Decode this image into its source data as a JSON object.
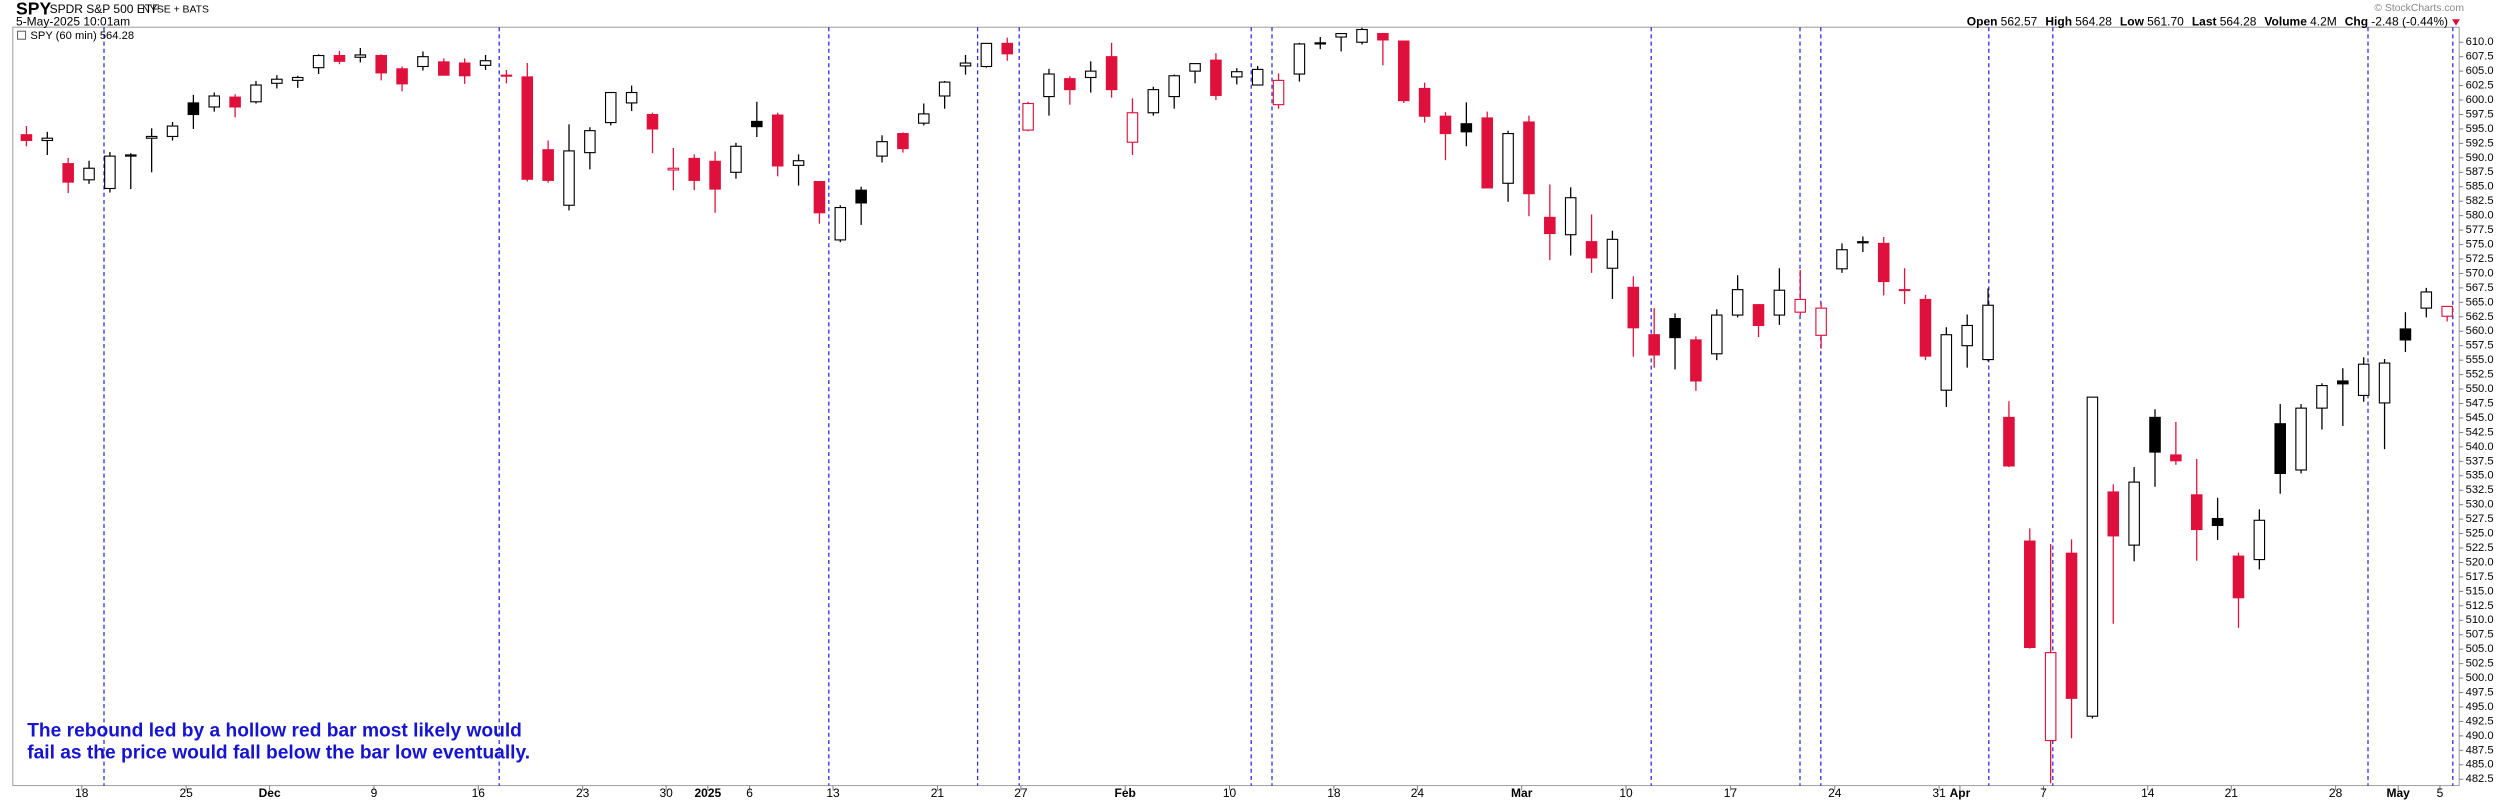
{
  "header": {
    "ticker": "SPY",
    "name": "SPDR S&P 500 ETF",
    "exchange": "NYSE + BATS",
    "date": "5-May-2025 10:01am",
    "legend": "SPY (60 min) 564.28",
    "watermark": "© StockCharts.com",
    "stats": [
      {
        "label": "Open",
        "value": "562.57"
      },
      {
        "label": "High",
        "value": "564.28"
      },
      {
        "label": "Low",
        "value": "561.70"
      },
      {
        "label": "Last",
        "value": "564.28"
      },
      {
        "label": "Volume",
        "value": "4.2M"
      },
      {
        "label": "Chg",
        "value": "-2.48 (-0.44%)"
      }
    ]
  },
  "chart_data": {
    "type": "candlestick",
    "annotation": [
      "The rebound led by a hollow red bar most likely would",
      "fail as the price would fall below the bar low eventually."
    ],
    "up_color": "#000000",
    "down_color": "#e0103c",
    "categories": [
      null,
      null,
      null,
      "18",
      null,
      null,
      null,
      null,
      "25",
      null,
      null,
      null,
      "Dec",
      null,
      null,
      null,
      null,
      "9",
      null,
      null,
      null,
      null,
      "16",
      null,
      null,
      null,
      null,
      "23",
      null,
      null,
      null,
      "30",
      null,
      "2025",
      null,
      "6",
      null,
      null,
      null,
      "13",
      null,
      null,
      null,
      null,
      "21",
      null,
      null,
      null,
      "27",
      null,
      null,
      null,
      null,
      "Feb",
      null,
      null,
      null,
      null,
      "10",
      null,
      null,
      null,
      null,
      "18",
      null,
      null,
      null,
      "24",
      null,
      null,
      null,
      null,
      "Mar",
      null,
      null,
      null,
      null,
      "10",
      null,
      null,
      null,
      null,
      "17",
      null,
      null,
      null,
      null,
      "24",
      null,
      null,
      null,
      null,
      "31",
      "Apr",
      null,
      null,
      null,
      "7",
      null,
      null,
      null,
      null,
      "14",
      null,
      null,
      null,
      "21",
      null,
      null,
      null,
      null,
      "28",
      null,
      null,
      "May",
      null,
      "5"
    ],
    "open": [
      594.0,
      593.0,
      589.0,
      586.2,
      584.7,
      590.3,
      593.4,
      593.7,
      599.5,
      598.8,
      600.5,
      599.7,
      602.9,
      603.4,
      605.6,
      607.7,
      607.4,
      607.7,
      605.4,
      605.8,
      606.6,
      606.4,
      606.0,
      604.2,
      604.0,
      591.4,
      581.8,
      590.9,
      596.1,
      599.5,
      597.5,
      587.9,
      589.9,
      589.4,
      587.5,
      596.3,
      597.4,
      588.7,
      585.9,
      575.8,
      584.4,
      590.3,
      594.2,
      596.0,
      600.7,
      605.9,
      605.8,
      609.8,
      594.8,
      600.6,
      603.7,
      603.9,
      607.5,
      592.7,
      597.8,
      600.6,
      605.0,
      606.9,
      604.0,
      602.6,
      599.2,
      604.5,
      609.9,
      610.9,
      610.0,
      611.5,
      610.2,
      602.0,
      597.2,
      595.9,
      596.9,
      585.6,
      596.2,
      579.7,
      576.7,
      575.5,
      570.9,
      567.6,
      559.4,
      562.2,
      558.5,
      556.1,
      562.8,
      564.6,
      562.8,
      563.3,
      559.3,
      570.8,
      575.3,
      575.2,
      567.2,
      565.5,
      549.8,
      557.5,
      555.1,
      545.1,
      523.7,
      489.2,
      521.6,
      493.4,
      532.2,
      523.0,
      545.1,
      538.6,
      531.7,
      527.6,
      521.1,
      520.5,
      544.0,
      536.0,
      546.7,
      551.4,
      548.9,
      547.6,
      560.4,
      564.0,
      562.6
    ],
    "high": [
      595.5,
      594.5,
      590.0,
      589.5,
      591.0,
      590.8,
      595.1,
      596.2,
      600.9,
      601.3,
      601.0,
      603.3,
      604.3,
      604.2,
      607.9,
      608.5,
      609.0,
      607.9,
      605.8,
      608.4,
      607.2,
      607.2,
      607.8,
      605.2,
      606.4,
      593.0,
      595.8,
      595.3,
      601.3,
      602.5,
      597.8,
      591.7,
      590.6,
      591.1,
      592.6,
      599.7,
      597.8,
      590.6,
      585.9,
      581.8,
      585.0,
      593.9,
      594.4,
      599.4,
      603.3,
      607.8,
      609.8,
      610.8,
      599.7,
      605.4,
      604.1,
      606.7,
      609.9,
      600.3,
      602.3,
      604.4,
      606.4,
      608.1,
      605.5,
      605.9,
      604.6,
      609.9,
      610.9,
      611.5,
      612.5,
      611.5,
      610.3,
      603.0,
      597.9,
      599.6,
      598.0,
      594.7,
      597.3,
      585.4,
      584.9,
      580.2,
      577.4,
      569.5,
      564.0,
      563.1,
      559.1,
      563.8,
      569.7,
      564.7,
      570.9,
      570.6,
      564.9,
      575.2,
      576.4,
      576.3,
      570.9,
      566.3,
      560.7,
      562.9,
      567.4,
      547.9,
      525.9,
      523.2,
      524.0,
      548.6,
      533.5,
      536.5,
      546.5,
      544.3,
      537.9,
      531.2,
      521.7,
      529.2,
      547.4,
      547.4,
      551.0,
      553.6,
      555.5,
      555.2,
      563.3,
      567.5,
      564.3
    ],
    "low": [
      592.0,
      590.5,
      583.9,
      585.5,
      584.0,
      584.6,
      587.5,
      593.0,
      595.0,
      598.0,
      597.0,
      599.4,
      602.0,
      602.1,
      604.5,
      606.2,
      606.5,
      603.4,
      601.5,
      605.1,
      604.3,
      602.8,
      605.2,
      602.9,
      585.9,
      585.7,
      580.9,
      588.0,
      595.6,
      598.1,
      590.8,
      584.4,
      584.4,
      580.5,
      586.4,
      593.6,
      586.8,
      585.2,
      578.6,
      575.4,
      578.4,
      589.2,
      590.9,
      595.6,
      598.5,
      604.4,
      605.6,
      606.8,
      594.6,
      597.3,
      599.2,
      601.3,
      600.4,
      590.5,
      597.3,
      598.5,
      602.9,
      600.0,
      602.7,
      602.5,
      598.5,
      603.2,
      608.8,
      608.4,
      609.6,
      606.0,
      599.5,
      596.1,
      589.6,
      592.0,
      584.7,
      582.4,
      579.9,
      572.3,
      573.1,
      570.1,
      565.6,
      555.6,
      553.7,
      553.4,
      549.7,
      555.0,
      562.4,
      559.0,
      561.1,
      562.6,
      557.0,
      570.1,
      573.7,
      566.2,
      564.7,
      555.0,
      546.9,
      553.7,
      554.8,
      536.5,
      505.1,
      481.8,
      489.6,
      493.0,
      509.4,
      520.2,
      533.1,
      536.9,
      520.3,
      523.9,
      508.7,
      518.8,
      531.9,
      535.4,
      543.0,
      543.6,
      547.8,
      539.6,
      556.4,
      562.4,
      561.7
    ],
    "close": [
      593.0,
      593.4,
      585.8,
      588.2,
      590.3,
      590.5,
      593.7,
      595.5,
      597.5,
      600.7,
      598.8,
      602.6,
      603.6,
      603.9,
      607.7,
      606.7,
      607.8,
      604.7,
      602.8,
      607.5,
      604.3,
      604.2,
      606.8,
      604.3,
      586.3,
      586.1,
      591.2,
      594.7,
      601.3,
      601.3,
      595.0,
      588.2,
      586.1,
      584.6,
      592.0,
      595.4,
      588.6,
      589.5,
      580.5,
      581.4,
      582.2,
      592.8,
      591.6,
      597.6,
      603.1,
      606.4,
      609.8,
      608.0,
      599.4,
      604.5,
      601.8,
      605.0,
      601.8,
      597.8,
      601.8,
      604.2,
      606.3,
      600.8,
      604.9,
      605.3,
      603.4,
      609.7,
      609.7,
      611.5,
      612.2,
      610.4,
      599.9,
      597.2,
      594.2,
      594.5,
      584.8,
      594.2,
      583.8,
      576.9,
      583.1,
      572.7,
      575.9,
      560.6,
      555.9,
      558.9,
      551.4,
      562.8,
      567.2,
      561.0,
      567.1,
      565.5,
      564.0,
      574.1,
      575.5,
      568.6,
      567.1,
      555.7,
      559.4,
      561.0,
      564.5,
      536.7,
      505.3,
      504.4,
      496.5,
      548.6,
      524.6,
      533.9,
      539.1,
      537.6,
      525.7,
      526.4,
      513.9,
      527.3,
      535.4,
      546.7,
      550.6,
      550.9,
      554.3,
      554.5,
      558.5,
      566.8,
      564.3
    ],
    "ylim": [
      481.4,
      612.6
    ],
    "yticks": [
      482.5,
      {
        "value": 485,
        "label": "485.0"
      },
      487.5,
      {
        "value": 490,
        "label": "490.0"
      },
      492.5,
      {
        "value": 495,
        "label": "495.0"
      },
      497.5,
      {
        "value": 500,
        "label": "500.0"
      },
      502.5,
      {
        "value": 505,
        "label": "505.0"
      },
      507.5,
      {
        "value": 510,
        "label": "510.0"
      },
      512.5,
      {
        "value": 515,
        "label": "515.0"
      },
      517.5,
      {
        "value": 520,
        "label": "520.0"
      },
      522.5,
      {
        "value": 525,
        "label": "525.0"
      },
      527.5,
      {
        "value": 530,
        "label": "530.0"
      },
      532.5,
      {
        "value": 535,
        "label": "535.0"
      },
      537.5,
      {
        "value": 540,
        "label": "540.0"
      },
      542.5,
      {
        "value": 545,
        "label": "545.0"
      },
      547.5,
      {
        "value": 550,
        "label": "550.0"
      },
      552.5,
      {
        "value": 555,
        "label": "555.0"
      },
      557.5,
      {
        "value": 560,
        "label": "560.0"
      },
      562.5,
      {
        "value": 565,
        "label": "565.0"
      },
      567.5,
      {
        "value": 570,
        "label": "570.0"
      },
      572.5,
      {
        "value": 575,
        "label": "575.0"
      },
      577.5,
      {
        "value": 580,
        "label": "580.0"
      },
      582.5,
      {
        "value": 585,
        "label": "585.0"
      },
      587.5,
      {
        "value": 590,
        "label": "590.0"
      },
      592.5,
      {
        "value": 595,
        "label": "595.0"
      },
      597.5,
      {
        "value": 600,
        "label": "600.0"
      },
      602.5,
      {
        "value": 605,
        "label": "605.0"
      },
      607.5,
      {
        "value": 610,
        "label": "610.0"
      }
    ],
    "grid": false
  }
}
